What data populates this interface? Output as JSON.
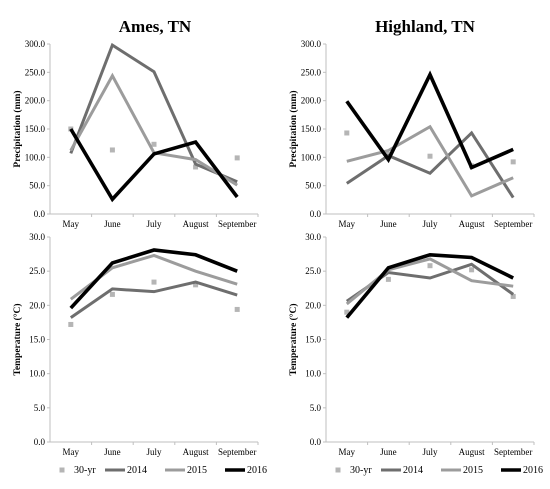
{
  "chart_data": [
    {
      "type": "line",
      "title": "Ames, TN",
      "xlabel": "",
      "ylabel": "Precipitation (mm)",
      "categories": [
        "May",
        "June",
        "July",
        "August",
        "September"
      ],
      "ylim": [
        0,
        300
      ],
      "yticks": [
        "0.0",
        "50.0",
        "100.0",
        "150.0",
        "200.0",
        "250.0",
        "300.0"
      ],
      "series": [
        {
          "name": "30-yr",
          "values": [
            150,
            113,
            123,
            83,
            99
          ]
        },
        {
          "name": "2014",
          "values": [
            107,
            298,
            251,
            88,
            57
          ]
        },
        {
          "name": "2015",
          "values": [
            112,
            244,
            108,
            96,
            51
          ]
        },
        {
          "name": "2016",
          "values": [
            150,
            26,
            106,
            127,
            30
          ]
        }
      ]
    },
    {
      "type": "line",
      "title": "Highland, TN",
      "xlabel": "",
      "ylabel": "Precipitation (mm)",
      "categories": [
        "May",
        "June",
        "July",
        "August",
        "September"
      ],
      "ylim": [
        0,
        300
      ],
      "yticks": [
        "0.0",
        "50.0",
        "100.0",
        "150.0",
        "200.0",
        "250.0",
        "300.0"
      ],
      "series": [
        {
          "name": "30-yr",
          "values": [
            143,
            105,
            102,
            85,
            92
          ]
        },
        {
          "name": "2014",
          "values": [
            54,
            103,
            72,
            143,
            29
          ]
        },
        {
          "name": "2015",
          "values": [
            93,
            112,
            154,
            32,
            64
          ]
        },
        {
          "name": "2016",
          "values": [
            199,
            96,
            246,
            82,
            114
          ]
        }
      ]
    },
    {
      "type": "line",
      "title": "",
      "xlabel": "",
      "ylabel": "Temperature (°C)",
      "categories": [
        "May",
        "June",
        "July",
        "August",
        "September"
      ],
      "ylim": [
        0,
        30
      ],
      "yticks": [
        "0.0",
        "5.0",
        "10.0",
        "15.0",
        "20.0",
        "25.0",
        "30.0"
      ],
      "series": [
        {
          "name": "30-yr",
          "values": [
            17.2,
            21.6,
            23.4,
            23.0,
            19.4
          ]
        },
        {
          "name": "2014",
          "values": [
            18.2,
            22.4,
            22.0,
            23.4,
            21.5
          ]
        },
        {
          "name": "2015",
          "values": [
            20.9,
            25.5,
            27.3,
            25.0,
            23.1
          ]
        },
        {
          "name": "2016",
          "values": [
            19.6,
            26.2,
            28.1,
            27.4,
            25.0
          ]
        }
      ]
    },
    {
      "type": "line",
      "title": "",
      "xlabel": "",
      "ylabel": "Temperature (°C)",
      "categories": [
        "May",
        "June",
        "July",
        "August",
        "September"
      ],
      "ylim": [
        0,
        30
      ],
      "yticks": [
        "0.0",
        "5.0",
        "10.0",
        "15.0",
        "20.0",
        "25.0",
        "30.0"
      ],
      "series": [
        {
          "name": "30-yr",
          "values": [
            19.0,
            23.8,
            25.8,
            25.2,
            21.3
          ]
        },
        {
          "name": "2014",
          "values": [
            20.6,
            24.8,
            24.0,
            26.0,
            21.6
          ]
        },
        {
          "name": "2015",
          "values": [
            20.2,
            25.2,
            26.8,
            23.6,
            22.8
          ]
        },
        {
          "name": "2016",
          "values": [
            18.2,
            25.5,
            27.4,
            27.0,
            24.0
          ]
        }
      ]
    }
  ],
  "legend": {
    "entries": [
      "30-yr",
      "2014",
      "2015",
      "2016"
    ]
  },
  "colors": {
    "30-yr": "#b5b5b5",
    "2014": "#6e6e6e",
    "2015": "#9c9c9c",
    "2016": "#000000",
    "axis": "#bfbfbf"
  }
}
